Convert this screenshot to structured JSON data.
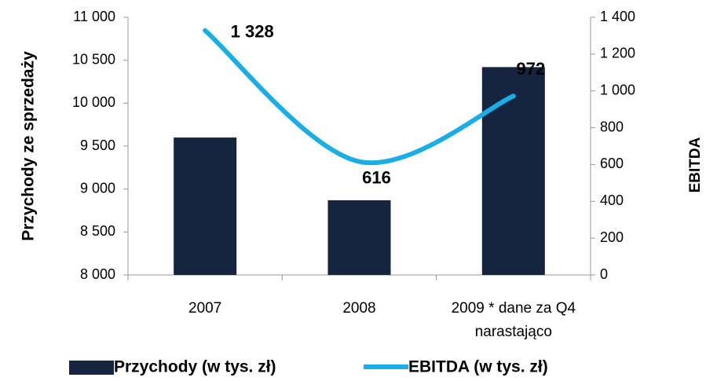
{
  "chart_data": {
    "type": "bar",
    "categories": [
      "2007",
      "2008",
      "2009 * dane za Q4 narastająco"
    ],
    "ylabel": "Przychody ze sprzedaży",
    "y2label": "EBITDA",
    "ylim": [
      8000,
      11000
    ],
    "yticks": [
      {
        "value": 8000,
        "label": "8 000"
      },
      {
        "value": 8500,
        "label": "8 500"
      },
      {
        "value": 9000,
        "label": "9 000"
      },
      {
        "value": 9500,
        "label": "9 500"
      },
      {
        "value": 10000,
        "label": "10 000"
      },
      {
        "value": 10500,
        "label": "10 500"
      },
      {
        "value": 11000,
        "label": "11 000"
      }
    ],
    "y2lim": [
      0,
      1400
    ],
    "y2ticks": [
      0,
      200,
      400,
      600,
      800,
      {
        "value": 1000,
        "label": "1 000"
      },
      {
        "value": 1200,
        "label": "1 200"
      },
      {
        "value": 1400,
        "label": "1 400"
      }
    ],
    "series": [
      {
        "name": "Przychody (w tys. zł)",
        "color": "#15243f",
        "values": [
          9600,
          8870,
          10420
        ]
      },
      {
        "name": "EBITDA (w tys. zł)",
        "type": "line",
        "axis": "y2",
        "color": "#19aee6",
        "values": [
          1328,
          616,
          972
        ],
        "value_labels": [
          "1 328",
          "616",
          "972"
        ]
      }
    ],
    "legend": "bottom"
  }
}
